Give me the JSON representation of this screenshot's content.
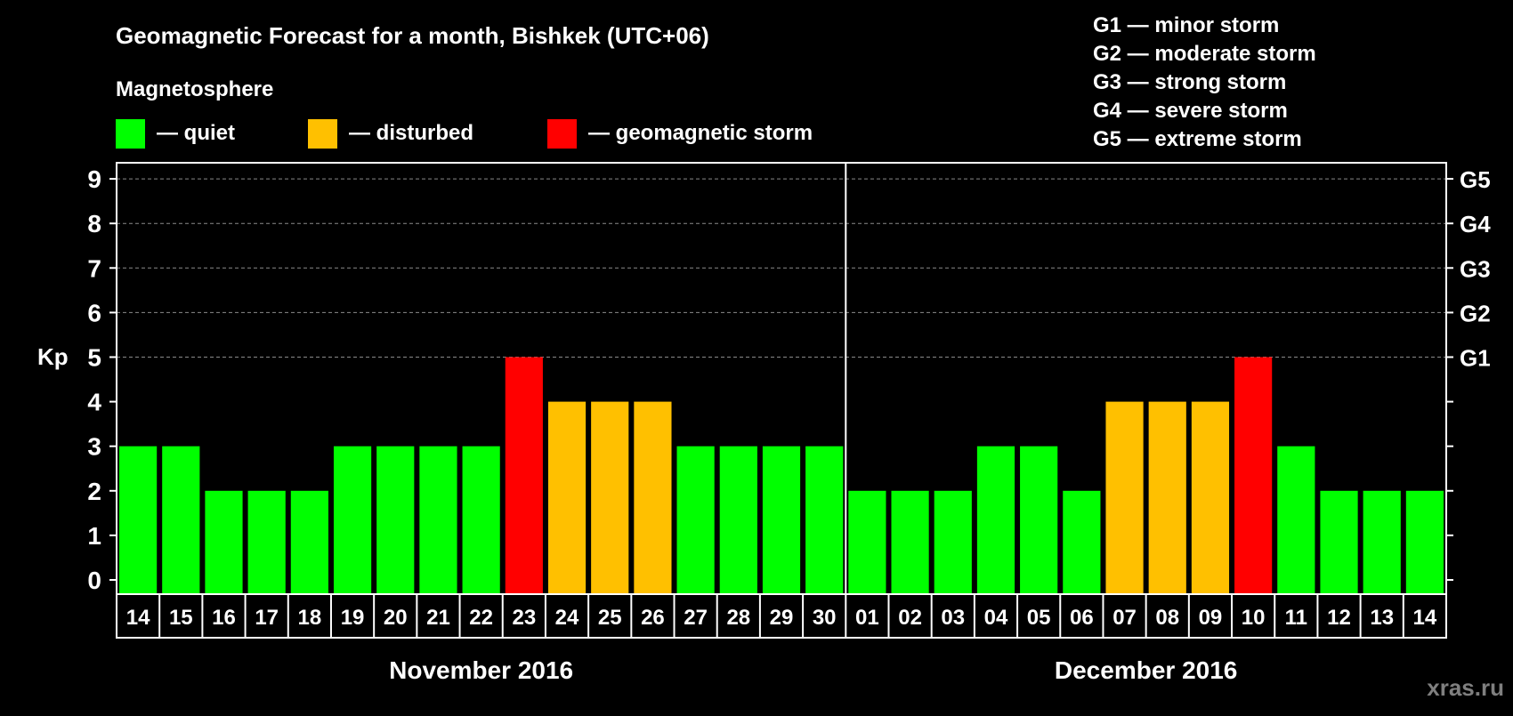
{
  "chart_data": {
    "type": "bar",
    "title": "Geomagnetic Forecast for a month, Bishkek (UTC+06)",
    "legend_title": "Magnetosphere",
    "legend": [
      {
        "label": "— quiet",
        "color": "#00ff00"
      },
      {
        "label": "— disturbed",
        "color": "#ffc000"
      },
      {
        "label": "— geomagnetic storm",
        "color": "#ff0000"
      }
    ],
    "storm_scale": [
      "G1 — minor storm",
      "G2 — moderate storm",
      "G3 — strong storm",
      "G4 — severe storm",
      "G5 — extreme storm"
    ],
    "ylabel": "Kp",
    "ylim": [
      0,
      9
    ],
    "yticks": [
      "0",
      "1",
      "2",
      "3",
      "4",
      "5",
      "6",
      "7",
      "8",
      "9"
    ],
    "right_ticks": [
      {
        "kp": 5,
        "label": "G1"
      },
      {
        "kp": 6,
        "label": "G2"
      },
      {
        "kp": 7,
        "label": "G3"
      },
      {
        "kp": 8,
        "label": "G4"
      },
      {
        "kp": 9,
        "label": "G5"
      }
    ],
    "grid": "dashed horizontal",
    "months": [
      {
        "label": "November 2016",
        "days": [
          "14",
          "15",
          "16",
          "17",
          "18",
          "19",
          "20",
          "21",
          "22",
          "23",
          "24",
          "25",
          "26",
          "27",
          "28",
          "29",
          "30"
        ],
        "values": [
          3,
          3,
          2,
          2,
          2,
          3,
          3,
          3,
          3,
          5,
          4,
          4,
          4,
          3,
          3,
          3,
          3
        ]
      },
      {
        "label": "December 2016",
        "days": [
          "01",
          "02",
          "03",
          "04",
          "05",
          "06",
          "07",
          "08",
          "09",
          "10",
          "11",
          "12",
          "13",
          "14"
        ],
        "values": [
          2,
          2,
          2,
          3,
          3,
          2,
          4,
          4,
          4,
          5,
          3,
          2,
          2,
          2
        ]
      }
    ]
  },
  "watermark": "xras.ru"
}
